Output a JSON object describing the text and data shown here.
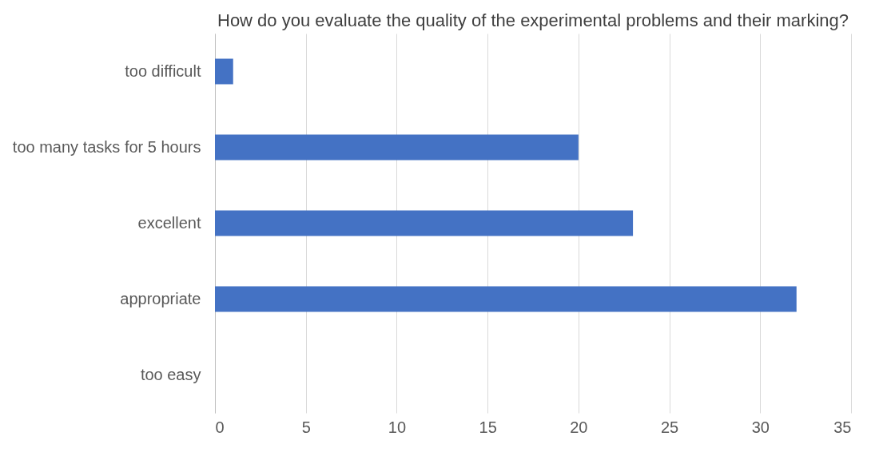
{
  "chart_data": {
    "type": "bar",
    "orientation": "horizontal",
    "title": "How do you evaluate the quality of the experimental problems and their marking?",
    "categories": [
      "too difficult",
      "too many tasks for 5 hours",
      "excellent",
      "appropriate",
      "too easy"
    ],
    "values": [
      1,
      20,
      23,
      32,
      0
    ],
    "color": "#4472c4",
    "xlim": [
      0,
      35
    ],
    "xticks": [
      0,
      5,
      10,
      15,
      20,
      25,
      30,
      35
    ],
    "grid": "x"
  }
}
